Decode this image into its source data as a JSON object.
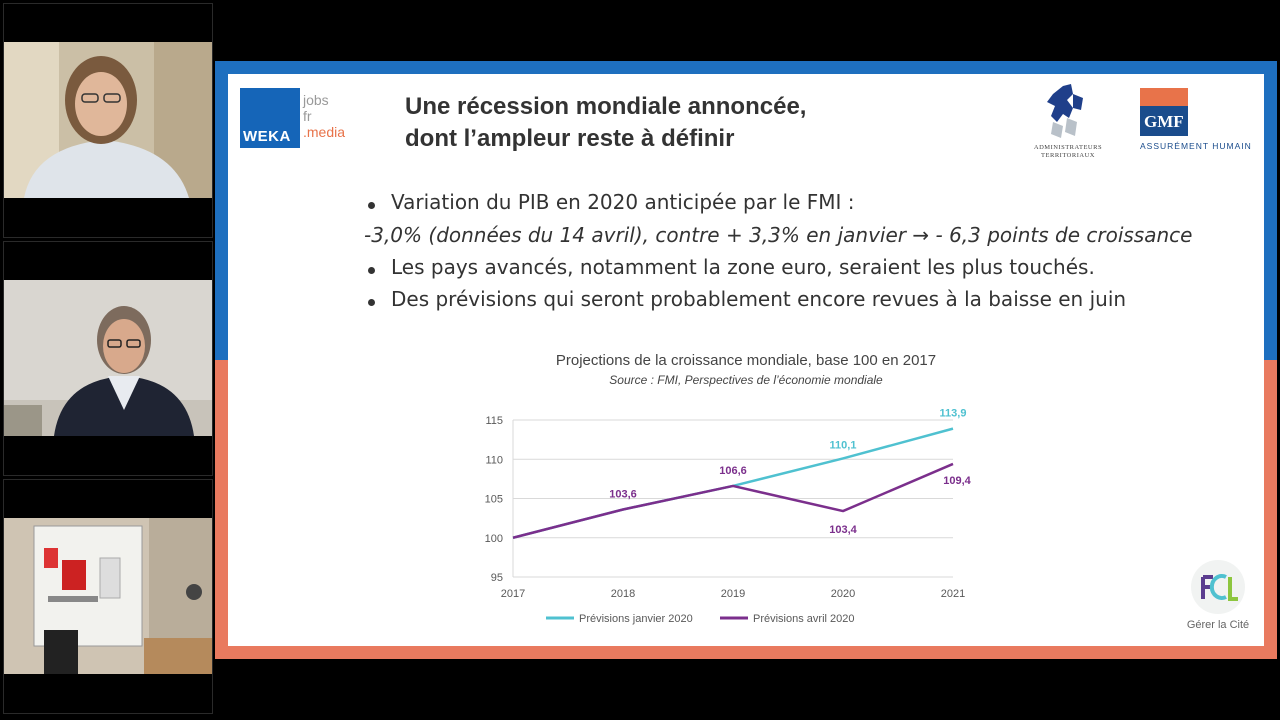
{
  "participants": [
    {
      "id": "participant-1"
    },
    {
      "id": "participant-2"
    },
    {
      "id": "participant-3"
    }
  ],
  "slide": {
    "weka_logo": {
      "brand": "WEKA",
      "line1": "jobs",
      "line2": "fr",
      "line3": ".media"
    },
    "title_line1": "Une récession mondiale annoncée,",
    "title_line2": "dont l’ampleur reste à définir",
    "admin_logo_caption_line1": "ADMINISTRATEURS",
    "admin_logo_caption_line2": "TERRITORIAUX",
    "gmf_logo": {
      "brand": "GMF",
      "tagline": "ASSURÉMENT HUMAIN"
    },
    "bullets": [
      "Variation du PIB en 2020 anticipée par le FMI :",
      "-3,0% (données du 14 avril), contre + 3,3% en janvier",
      "Les pays avancés, notamment la zone euro, seraient les plus touchés.",
      "Des prévisions qui seront probablement encore revues à la baisse en juin"
    ],
    "arrow_glyph": "→",
    "arrow_tail": "- 6,3 points de croissance",
    "chart_title": "Projections de la croissance mondiale, base 100 en 2017",
    "chart_source": "Source : FMI, Perspectives de l’économie mondiale",
    "fcl_caption": "Gérer la Cité"
  },
  "colors": {
    "band_blue": "#1e6fbf",
    "band_orange": "#e97a5f",
    "series_jan": "#4fc1d0",
    "series_apr": "#7b2f8c"
  },
  "chart_data": {
    "type": "line",
    "title": "Projections de la croissance mondiale, base 100 en 2017",
    "subtitle": "Source : FMI, Perspectives de l’économie mondiale",
    "x": [
      "2017",
      "2018",
      "2019",
      "2020",
      "2021"
    ],
    "ylim": [
      95,
      115
    ],
    "yticks": [
      95,
      100,
      105,
      110,
      115
    ],
    "grid": true,
    "legend_position": "bottom",
    "series": [
      {
        "name": "Prévisions janvier 2020",
        "values": [
          100,
          103.6,
          106.6,
          110.1,
          113.9
        ],
        "labels": [
          "",
          "",
          "",
          "110,1",
          "113,9"
        ],
        "color": "#4fc1d0"
      },
      {
        "name": "Prévisions avril 2020",
        "values": [
          100,
          103.6,
          106.6,
          103.4,
          109.4
        ],
        "labels": [
          "",
          "103,6",
          "106,6",
          "103,4",
          "109,4"
        ],
        "color": "#7b2f8c"
      }
    ]
  }
}
